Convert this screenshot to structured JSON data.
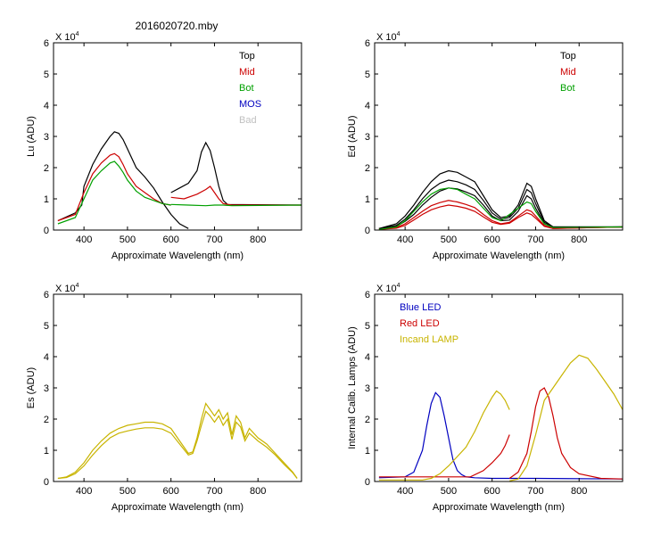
{
  "figure_title": "2016020720.mby",
  "chart_data": [
    {
      "type": "line",
      "id": "lu",
      "ylabel": "Lu (ADU)",
      "xlabel": "Approximate Wavelength (nm)",
      "exponent_label": "X 10",
      "exponent_power": "4",
      "xlim": [
        330,
        900
      ],
      "ylim": [
        0,
        6
      ],
      "xticks": [
        400,
        500,
        600,
        700,
        800
      ],
      "yticks": [
        0,
        1,
        2,
        3,
        4,
        5,
        6
      ],
      "legend": [
        {
          "label": "Top",
          "color": "#000000"
        },
        {
          "label": "Mid",
          "color": "#cc0000"
        },
        {
          "label": "Bot",
          "color": "#00a000"
        },
        {
          "label": "MOS",
          "color": "#0000c0"
        },
        {
          "label": "Bad",
          "color": "#c0c0c0"
        }
      ],
      "series": [
        {
          "name": "Top",
          "color": "#000000",
          "x": [
            340,
            380,
            395,
            400,
            420,
            440,
            460,
            470,
            480,
            490,
            500,
            520,
            540,
            560,
            580,
            600,
            620,
            640
          ],
          "y": [
            0.3,
            0.55,
            0.8,
            1.4,
            2.1,
            2.6,
            3.0,
            3.15,
            3.1,
            2.9,
            2.6,
            2.0,
            1.7,
            1.35,
            0.9,
            0.5,
            0.2,
            0.05
          ]
        },
        {
          "name": "Top",
          "color": "#000000",
          "x": [
            600,
            620,
            640,
            660,
            670,
            680,
            690,
            700,
            710,
            720,
            730,
            900
          ],
          "y": [
            1.2,
            1.35,
            1.5,
            1.9,
            2.5,
            2.8,
            2.55,
            2.0,
            1.4,
            0.95,
            0.82,
            0.8
          ]
        },
        {
          "name": "Mid",
          "color": "#cc0000",
          "x": [
            340,
            380,
            400,
            420,
            440,
            460,
            470,
            480,
            490,
            500,
            520,
            540,
            560,
            580,
            600
          ],
          "y": [
            0.3,
            0.5,
            1.2,
            1.8,
            2.15,
            2.4,
            2.45,
            2.35,
            2.1,
            1.8,
            1.4,
            1.2,
            1.0,
            0.85,
            0.8
          ]
        },
        {
          "name": "Mid",
          "color": "#cc0000",
          "x": [
            600,
            630,
            660,
            680,
            690,
            700,
            710,
            720,
            740,
            900
          ],
          "y": [
            1.05,
            1.0,
            1.15,
            1.3,
            1.4,
            1.2,
            1.0,
            0.85,
            0.8,
            0.8
          ]
        },
        {
          "name": "Bot",
          "color": "#00a000",
          "x": [
            340,
            380,
            400,
            420,
            440,
            460,
            470,
            480,
            490,
            500,
            520,
            540,
            560,
            580,
            600
          ],
          "y": [
            0.2,
            0.4,
            1.0,
            1.6,
            1.9,
            2.15,
            2.2,
            2.05,
            1.85,
            1.6,
            1.25,
            1.05,
            0.95,
            0.85,
            0.8
          ]
        },
        {
          "name": "Bot",
          "color": "#00a000",
          "x": [
            600,
            640,
            680,
            700,
            720,
            740,
            900
          ],
          "y": [
            0.82,
            0.8,
            0.78,
            0.8,
            0.8,
            0.78,
            0.8
          ]
        }
      ]
    },
    {
      "type": "line",
      "id": "ed",
      "ylabel": "Ed  (ADU)",
      "xlabel": "Approximate Wavelength (nm)",
      "exponent_label": "X 10",
      "exponent_power": "4",
      "xlim": [
        330,
        900
      ],
      "ylim": [
        0,
        6
      ],
      "xticks": [
        400,
        500,
        600,
        700,
        800
      ],
      "yticks": [
        0,
        1,
        2,
        3,
        4,
        5,
        6
      ],
      "legend": [
        {
          "label": "Top",
          "color": "#000000"
        },
        {
          "label": "Mid",
          "color": "#cc0000"
        },
        {
          "label": "Bot",
          "color": "#00a000"
        }
      ],
      "series": [
        {
          "name": "Top",
          "color": "#000000",
          "x": [
            340,
            380,
            400,
            420,
            440,
            460,
            480,
            500,
            520,
            540,
            560,
            580,
            600,
            620,
            640,
            660,
            680,
            690,
            700,
            720,
            740,
            900
          ],
          "y": [
            0.05,
            0.2,
            0.45,
            0.8,
            1.2,
            1.55,
            1.8,
            1.9,
            1.85,
            1.7,
            1.55,
            1.1,
            0.65,
            0.4,
            0.45,
            0.8,
            1.5,
            1.4,
            1.0,
            0.3,
            0.1,
            0.1
          ]
        },
        {
          "name": "Top",
          "color": "#000000",
          "x": [
            340,
            380,
            400,
            420,
            440,
            460,
            480,
            500,
            520,
            540,
            560,
            580,
            600,
            620,
            640,
            660,
            680,
            690,
            700,
            720,
            740,
            900
          ],
          "y": [
            0.05,
            0.15,
            0.35,
            0.65,
            1.0,
            1.3,
            1.5,
            1.6,
            1.55,
            1.45,
            1.3,
            0.95,
            0.55,
            0.35,
            0.4,
            0.7,
            1.3,
            1.2,
            0.85,
            0.25,
            0.1,
            0.1
          ]
        },
        {
          "name": "Top",
          "color": "#000000",
          "x": [
            340,
            380,
            400,
            420,
            440,
            460,
            480,
            500,
            520,
            540,
            560,
            580,
            600,
            620,
            640,
            660,
            680,
            690,
            700,
            720,
            740,
            900
          ],
          "y": [
            0.05,
            0.12,
            0.28,
            0.5,
            0.8,
            1.05,
            1.25,
            1.35,
            1.32,
            1.22,
            1.1,
            0.8,
            0.45,
            0.3,
            0.32,
            0.6,
            1.1,
            1.0,
            0.7,
            0.2,
            0.08,
            0.1
          ]
        },
        {
          "name": "Mid",
          "color": "#cc0000",
          "x": [
            340,
            380,
            400,
            420,
            440,
            460,
            480,
            500,
            520,
            540,
            560,
            580,
            600,
            620,
            640,
            660,
            680,
            690,
            700,
            720,
            740,
            900
          ],
          "y": [
            0.02,
            0.08,
            0.2,
            0.4,
            0.6,
            0.78,
            0.88,
            0.95,
            0.9,
            0.82,
            0.72,
            0.5,
            0.3,
            0.2,
            0.25,
            0.45,
            0.65,
            0.6,
            0.45,
            0.15,
            0.05,
            0.1
          ]
        },
        {
          "name": "Mid",
          "color": "#cc0000",
          "x": [
            340,
            380,
            400,
            420,
            440,
            460,
            480,
            500,
            520,
            540,
            560,
            580,
            600,
            620,
            640,
            660,
            680,
            690,
            700,
            720,
            740,
            900
          ],
          "y": [
            0.02,
            0.06,
            0.15,
            0.32,
            0.5,
            0.65,
            0.74,
            0.8,
            0.76,
            0.7,
            0.6,
            0.42,
            0.25,
            0.18,
            0.22,
            0.4,
            0.55,
            0.5,
            0.38,
            0.12,
            0.05,
            0.1
          ]
        },
        {
          "name": "Bot",
          "color": "#00a000",
          "x": [
            340,
            380,
            400,
            420,
            440,
            460,
            480,
            500,
            520,
            540,
            560,
            580,
            600,
            620,
            640,
            660,
            680,
            690,
            700,
            720,
            740,
            900
          ],
          "y": [
            0.02,
            0.1,
            0.3,
            0.6,
            0.9,
            1.15,
            1.3,
            1.35,
            1.3,
            1.15,
            1.0,
            0.7,
            0.4,
            0.3,
            0.5,
            0.7,
            0.9,
            0.85,
            0.6,
            0.2,
            0.08,
            0.1
          ]
        }
      ]
    },
    {
      "type": "line",
      "id": "es",
      "ylabel": "Es  (ADU)",
      "xlabel": "Approximate Wavelength (nm)",
      "exponent_label": "X 10",
      "exponent_power": "4",
      "xlim": [
        330,
        900
      ],
      "ylim": [
        0,
        6
      ],
      "xticks": [
        400,
        500,
        600,
        700,
        800
      ],
      "yticks": [
        0,
        1,
        2,
        3,
        4,
        5,
        6
      ],
      "legend": [],
      "series": [
        {
          "name": "Es",
          "color": "#c8b400",
          "x": [
            340,
            360,
            380,
            400,
            420,
            440,
            460,
            480,
            500,
            520,
            540,
            560,
            580,
            600,
            620,
            640,
            650,
            660,
            670,
            680,
            690,
            700,
            710,
            720,
            730,
            740,
            750,
            760,
            770,
            780,
            800,
            820,
            840,
            860,
            880,
            890
          ],
          "y": [
            0.1,
            0.15,
            0.3,
            0.6,
            1.0,
            1.3,
            1.55,
            1.7,
            1.8,
            1.85,
            1.9,
            1.9,
            1.85,
            1.7,
            1.3,
            0.9,
            0.95,
            1.4,
            2.0,
            2.5,
            2.3,
            2.1,
            2.3,
            2.0,
            2.2,
            1.5,
            2.1,
            1.9,
            1.4,
            1.7,
            1.4,
            1.2,
            0.9,
            0.6,
            0.3,
            0.1
          ]
        },
        {
          "name": "Es",
          "color": "#c8b400",
          "x": [
            340,
            360,
            380,
            400,
            420,
            440,
            460,
            480,
            500,
            520,
            540,
            560,
            580,
            600,
            620,
            640,
            650,
            660,
            670,
            680,
            690,
            700,
            710,
            720,
            730,
            740,
            750,
            760,
            770,
            780,
            800,
            820,
            840,
            860,
            880,
            890
          ],
          "y": [
            0.1,
            0.13,
            0.25,
            0.5,
            0.85,
            1.15,
            1.4,
            1.55,
            1.62,
            1.68,
            1.72,
            1.72,
            1.68,
            1.55,
            1.2,
            0.85,
            0.9,
            1.3,
            1.8,
            2.25,
            2.1,
            1.9,
            2.1,
            1.8,
            2.0,
            1.35,
            1.9,
            1.75,
            1.3,
            1.55,
            1.3,
            1.1,
            0.85,
            0.55,
            0.28,
            0.1
          ]
        }
      ]
    },
    {
      "type": "line",
      "id": "calib",
      "ylabel": "Internal Calib. Lamps (ADU)",
      "xlabel": "Approximate Wavelength (nm)",
      "exponent_label": "X 10",
      "exponent_power": "4",
      "xlim": [
        330,
        900
      ],
      "ylim": [
        0,
        6
      ],
      "xticks": [
        400,
        500,
        600,
        700,
        800
      ],
      "yticks": [
        0,
        1,
        2,
        3,
        4,
        5,
        6
      ],
      "legend": [
        {
          "label": "Blue LED",
          "color": "#0000c0"
        },
        {
          "label": "Red LED",
          "color": "#cc0000"
        },
        {
          "label": "Incand LAMP",
          "color": "#c8b400"
        }
      ],
      "series": [
        {
          "name": "Blue LED",
          "color": "#0000c0",
          "x": [
            340,
            400,
            420,
            440,
            450,
            460,
            470,
            480,
            490,
            500,
            510,
            520,
            530,
            540,
            560,
            600,
            700,
            900
          ],
          "y": [
            0.12,
            0.15,
            0.3,
            1.0,
            1.8,
            2.5,
            2.85,
            2.7,
            2.1,
            1.4,
            0.7,
            0.35,
            0.22,
            0.15,
            0.12,
            0.1,
            0.1,
            0.08
          ]
        },
        {
          "name": "Red LED",
          "color": "#cc0000",
          "x": [
            340,
            500,
            550,
            580,
            600,
            620,
            630,
            640
          ],
          "y": [
            0.15,
            0.15,
            0.15,
            0.35,
            0.6,
            0.9,
            1.15,
            1.5
          ]
        },
        {
          "name": "Red LED",
          "color": "#cc0000",
          "x": [
            640,
            660,
            680,
            690,
            700,
            710,
            720,
            730,
            740,
            750,
            760,
            780,
            800,
            850,
            900
          ],
          "y": [
            0.1,
            0.3,
            0.9,
            1.6,
            2.4,
            2.9,
            3.0,
            2.7,
            2.1,
            1.4,
            0.9,
            0.45,
            0.25,
            0.1,
            0.08
          ]
        },
        {
          "name": "Incand LAMP",
          "color": "#c8b400",
          "x": [
            340,
            440,
            460,
            480,
            500,
            520,
            540,
            560,
            580,
            600,
            610,
            620,
            630,
            640
          ],
          "y": [
            0.05,
            0.05,
            0.1,
            0.25,
            0.5,
            0.8,
            1.1,
            1.6,
            2.2,
            2.7,
            2.9,
            2.8,
            2.6,
            2.3
          ]
        },
        {
          "name": "Incand LAMP",
          "color": "#c8b400",
          "x": [
            640,
            660,
            680,
            700,
            720,
            740,
            760,
            780,
            800,
            820,
            840,
            860,
            880,
            900
          ],
          "y": [
            0.02,
            0.08,
            0.5,
            1.5,
            2.6,
            3.0,
            3.4,
            3.8,
            4.05,
            3.95,
            3.6,
            3.2,
            2.8,
            2.3
          ]
        }
      ]
    }
  ]
}
